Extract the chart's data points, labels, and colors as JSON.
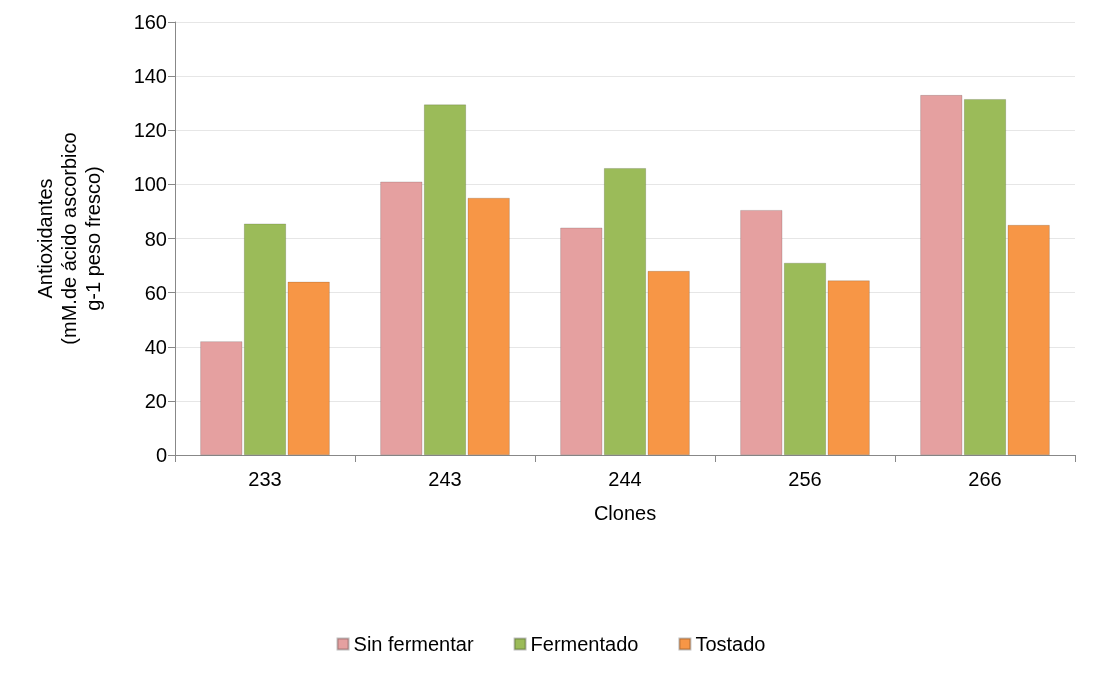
{
  "chart_data": {
    "type": "bar",
    "xlabel": "Clones",
    "ylabel": "Antioxidantes\n(mM.de ácido ascorbico\ng-1 peso fresco)",
    "categories": [
      "233",
      "243",
      "244",
      "256",
      "266"
    ],
    "series": [
      {
        "name": "Sin fermentar",
        "color": "#e5a0a0",
        "values": [
          42,
          101,
          84,
          90.5,
          133
        ]
      },
      {
        "name": "Fermentado",
        "color": "#9bbb59",
        "values": [
          85.5,
          129.5,
          106,
          71,
          131.5
        ]
      },
      {
        "name": "Tostado",
        "color": "#f79646",
        "values": [
          64,
          95,
          68,
          64.5,
          85
        ]
      }
    ],
    "ylim": [
      0,
      160
    ],
    "yticks": [
      0,
      20,
      40,
      60,
      80,
      100,
      120,
      140,
      160
    ],
    "grid": "y",
    "legend": "bottom"
  }
}
